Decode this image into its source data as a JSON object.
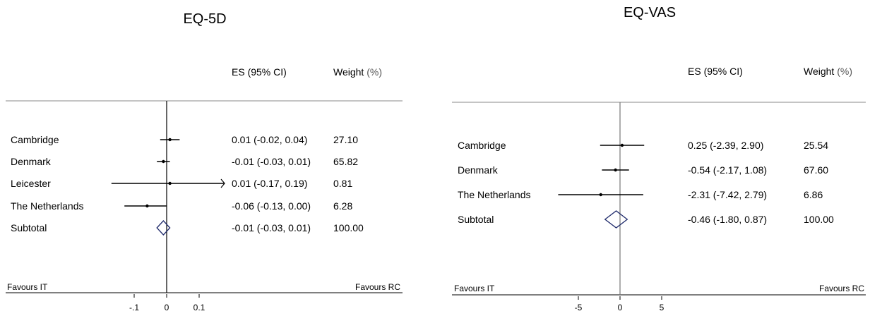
{
  "chart_data": [
    {
      "type": "forest",
      "title": "EQ-5D",
      "column_headers": {
        "es": "ES (95% CI)",
        "weight_main": "Weight",
        "weight_unit": "(%)"
      },
      "studies": [
        {
          "label": "Cambridge",
          "es": 0.01,
          "lo": -0.02,
          "hi": 0.04,
          "es_text": "0.01 (-0.02, 0.04)",
          "weight": "27.10"
        },
        {
          "label": "Denmark",
          "es": -0.01,
          "lo": -0.03,
          "hi": 0.01,
          "es_text": "-0.01 (-0.03, 0.01)",
          "weight": "65.82"
        },
        {
          "label": "Leicester",
          "es": 0.01,
          "lo": -0.17,
          "hi": 0.19,
          "es_text": "0.01 (-0.17, 0.19)",
          "weight": "0.81",
          "truncated_right": true
        },
        {
          "label": "The Netherlands",
          "es": -0.06,
          "lo": -0.13,
          "hi": 0.0,
          "es_text": "-0.06 (-0.13, 0.00)",
          "weight": "6.28"
        }
      ],
      "subtotal": {
        "label": "Subtotal",
        "es": -0.01,
        "lo": -0.03,
        "hi": 0.01,
        "es_text": "-0.01 (-0.03, 0.01)",
        "weight": "100.00"
      },
      "favours_left": "Favours IT",
      "favours_right": "Favours RC",
      "x_ticks": [
        {
          "value": -0.1,
          "label": "-.1"
        },
        {
          "value": 0,
          "label": "0"
        },
        {
          "value": 0.1,
          "label": "0.1"
        }
      ],
      "xlim": [
        -0.17,
        0.19
      ]
    },
    {
      "type": "forest",
      "title": "EQ-VAS",
      "column_headers": {
        "es": "ES (95% CI)",
        "weight_main": "Weight",
        "weight_unit": "(%)"
      },
      "studies": [
        {
          "label": "Cambridge",
          "es": 0.25,
          "lo": -2.39,
          "hi": 2.9,
          "es_text": "0.25 (-2.39, 2.90)",
          "weight": "25.54"
        },
        {
          "label": "Denmark",
          "es": -0.54,
          "lo": -2.17,
          "hi": 1.08,
          "es_text": "-0.54 (-2.17, 1.08)",
          "weight": "67.60"
        },
        {
          "label": "The Netherlands",
          "es": -2.31,
          "lo": -7.42,
          "hi": 2.79,
          "es_text": "-2.31 (-7.42, 2.79)",
          "weight": "6.86"
        }
      ],
      "subtotal": {
        "label": "Subtotal",
        "es": -0.46,
        "lo": -1.8,
        "hi": 0.87,
        "es_text": "-0.46 (-1.80, 0.87)",
        "weight": "100.00"
      },
      "favours_left": "Favours IT",
      "favours_right": "Favours RC",
      "x_ticks": [
        {
          "value": -5,
          "label": "-5"
        },
        {
          "value": 0,
          "label": "0"
        },
        {
          "value": 5,
          "label": "5"
        }
      ],
      "xlim": [
        -7.42,
        2.9
      ]
    }
  ]
}
